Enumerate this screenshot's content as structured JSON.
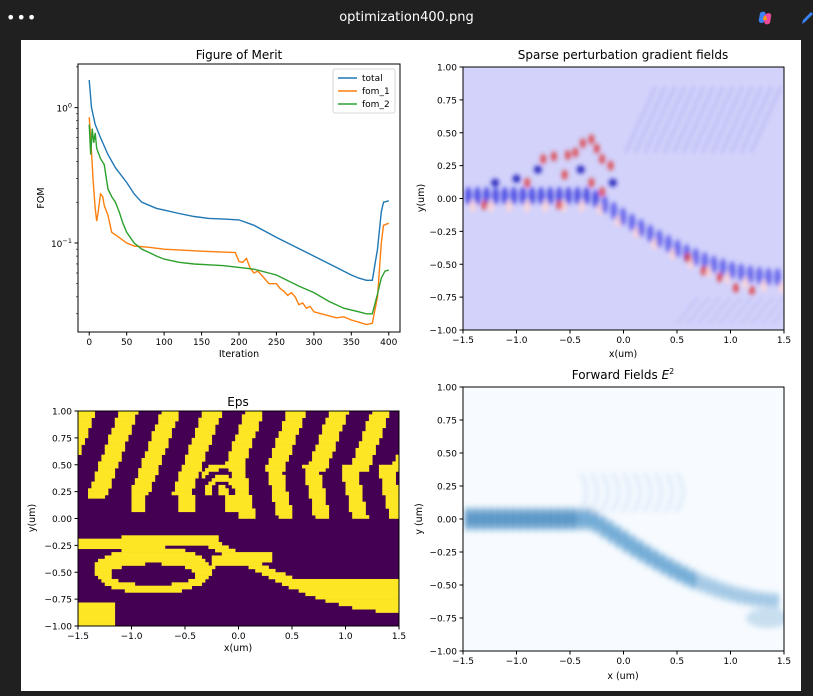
{
  "window": {
    "title": "optimization400.png",
    "menu_label": "•••"
  },
  "colors": {
    "total": "#1f77b4",
    "fom_1": "#ff7f0e",
    "fom_2": "#2ca02c",
    "eps_dark": "#440154",
    "eps_light": "#fde725"
  },
  "chart_data": [
    {
      "type": "line",
      "title": "Figure of Merit",
      "xlabel": "Iteration",
      "ylabel": "FOM",
      "yscale": "log",
      "xlim": [
        -15,
        415
      ],
      "ylim": [
        0.022,
        2.1
      ],
      "xticks": [
        0,
        50,
        100,
        150,
        200,
        250,
        300,
        350,
        400
      ],
      "yticks": [
        {
          "value": 1,
          "label": "10^0"
        },
        {
          "value": 0.1,
          "label": "10^-1"
        }
      ],
      "legend": "upper right",
      "series": [
        {
          "name": "total",
          "points": [
            [
              0,
              1.6
            ],
            [
              3,
              1.0
            ],
            [
              8,
              0.75
            ],
            [
              15,
              0.6
            ],
            [
              25,
              0.45
            ],
            [
              35,
              0.36
            ],
            [
              50,
              0.28
            ],
            [
              60,
              0.23
            ],
            [
              70,
              0.2
            ],
            [
              80,
              0.19
            ],
            [
              90,
              0.18
            ],
            [
              100,
              0.175
            ],
            [
              120,
              0.165
            ],
            [
              140,
              0.157
            ],
            [
              160,
              0.152
            ],
            [
              180,
              0.15
            ],
            [
              200,
              0.148
            ],
            [
              220,
              0.135
            ],
            [
              250,
              0.11
            ],
            [
              300,
              0.08
            ],
            [
              330,
              0.066
            ],
            [
              350,
              0.058
            ],
            [
              360,
              0.055
            ],
            [
              370,
              0.053
            ],
            [
              378,
              0.053
            ],
            [
              385,
              0.09
            ],
            [
              390,
              0.17
            ],
            [
              393,
              0.2
            ],
            [
              400,
              0.205
            ]
          ]
        },
        {
          "name": "fom_1",
          "points": [
            [
              0,
              0.85
            ],
            [
              2,
              0.6
            ],
            [
              5,
              0.3
            ],
            [
              8,
              0.18
            ],
            [
              10,
              0.145
            ],
            [
              12,
              0.17
            ],
            [
              15,
              0.23
            ],
            [
              18,
              0.22
            ],
            [
              20,
              0.19
            ],
            [
              25,
              0.16
            ],
            [
              30,
              0.12
            ],
            [
              40,
              0.11
            ],
            [
              50,
              0.1
            ],
            [
              60,
              0.095
            ],
            [
              80,
              0.093
            ],
            [
              100,
              0.09
            ],
            [
              150,
              0.087
            ],
            [
              195,
              0.085
            ],
            [
              200,
              0.073
            ],
            [
              205,
              0.072
            ],
            [
              210,
              0.077
            ],
            [
              215,
              0.065
            ],
            [
              220,
              0.06
            ],
            [
              225,
              0.062
            ],
            [
              230,
              0.058
            ],
            [
              240,
              0.05
            ],
            [
              250,
              0.05
            ],
            [
              255,
              0.046
            ],
            [
              260,
              0.044
            ],
            [
              265,
              0.041
            ],
            [
              270,
              0.043
            ],
            [
              275,
              0.04
            ],
            [
              280,
              0.035
            ],
            [
              285,
              0.036
            ],
            [
              290,
              0.033
            ],
            [
              295,
              0.034
            ],
            [
              300,
              0.031
            ],
            [
              310,
              0.03
            ],
            [
              320,
              0.029
            ],
            [
              330,
              0.028
            ],
            [
              340,
              0.0285
            ],
            [
              350,
              0.027
            ],
            [
              360,
              0.026
            ],
            [
              370,
              0.025
            ],
            [
              378,
              0.0255
            ],
            [
              385,
              0.04
            ],
            [
              390,
              0.1
            ],
            [
              393,
              0.135
            ],
            [
              400,
              0.14
            ]
          ]
        },
        {
          "name": "fom_2",
          "points": [
            [
              0,
              0.75
            ],
            [
              2,
              0.45
            ],
            [
              4,
              0.7
            ],
            [
              6,
              0.55
            ],
            [
              8,
              0.65
            ],
            [
              10,
              0.5
            ],
            [
              15,
              0.42
            ],
            [
              20,
              0.38
            ],
            [
              25,
              0.25
            ],
            [
              30,
              0.22
            ],
            [
              35,
              0.2
            ],
            [
              40,
              0.17
            ],
            [
              45,
              0.14
            ],
            [
              50,
              0.12
            ],
            [
              60,
              0.1
            ],
            [
              70,
              0.09
            ],
            [
              80,
              0.085
            ],
            [
              90,
              0.08
            ],
            [
              100,
              0.076
            ],
            [
              120,
              0.072
            ],
            [
              140,
              0.07
            ],
            [
              160,
              0.069
            ],
            [
              180,
              0.068
            ],
            [
              200,
              0.066
            ],
            [
              220,
              0.064
            ],
            [
              250,
              0.058
            ],
            [
              280,
              0.048
            ],
            [
              300,
              0.043
            ],
            [
              320,
              0.037
            ],
            [
              340,
              0.033
            ],
            [
              360,
              0.031
            ],
            [
              370,
              0.03
            ],
            [
              378,
              0.03
            ],
            [
              385,
              0.042
            ],
            [
              390,
              0.055
            ],
            [
              395,
              0.062
            ],
            [
              400,
              0.063
            ]
          ]
        }
      ]
    },
    {
      "type": "heatmap",
      "title": "Sparse perturbation gradient fields",
      "xlabel": "x(um)",
      "ylabel": "y(um)",
      "xlim": [
        -1.5,
        1.5
      ],
      "ylim": [
        -1.0,
        1.0
      ],
      "xticks": [
        -1.5,
        -1.0,
        -0.5,
        0.0,
        0.5,
        1.0,
        1.5
      ],
      "yticks": [
        1.0,
        0.75,
        0.5,
        0.25,
        0.0,
        -0.25,
        -0.5,
        -0.75,
        -1.0
      ],
      "colormap": "bwr"
    },
    {
      "type": "heatmap",
      "title": "Eps",
      "xlabel": "x(um)",
      "ylabel": "y(um)",
      "xlim": [
        -1.5,
        1.5
      ],
      "ylim": [
        -1.0,
        1.0
      ],
      "xticks": [
        -1.5,
        -1.0,
        -0.5,
        0.0,
        0.5,
        1.0,
        1.5
      ],
      "yticks": [
        1.0,
        0.75,
        0.5,
        0.25,
        0.0,
        -0.25,
        -0.5,
        -0.75,
        -1.0
      ],
      "colormap": "viridis"
    },
    {
      "type": "heatmap",
      "title": "Forward Fields E^2",
      "xlabel": "x (um)",
      "ylabel": "y (um)",
      "xlim": [
        -1.5,
        1.5
      ],
      "ylim": [
        -1.0,
        1.0
      ],
      "xticks": [
        -1.5,
        -1.0,
        -0.5,
        0.0,
        0.5,
        1.0,
        1.5
      ],
      "yticks": [
        1.0,
        0.75,
        0.5,
        0.25,
        0.0,
        -0.25,
        -0.5,
        -0.75,
        -1.0
      ],
      "colormap": "Blues"
    }
  ]
}
